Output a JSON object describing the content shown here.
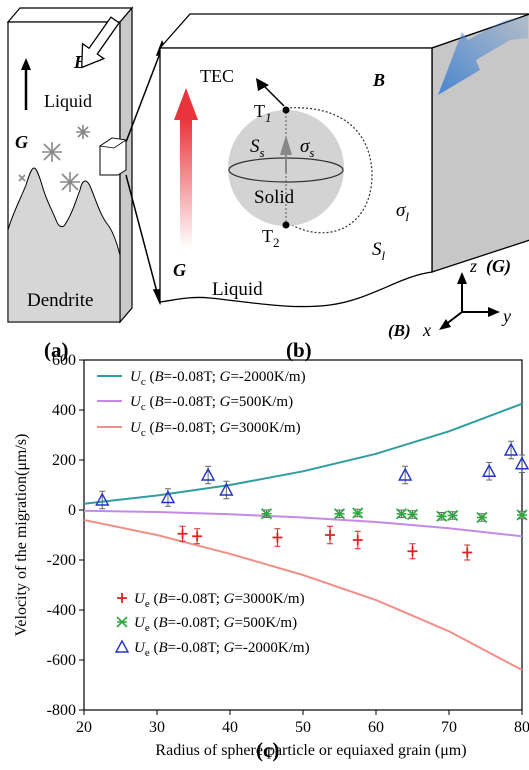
{
  "panel_a": {
    "label": "(a)",
    "b_label": "B",
    "liquid": "Liquid",
    "g_label": "G",
    "dendrite": "Dendrite"
  },
  "panel_b": {
    "label": "(b)",
    "tec": "TEC",
    "b_label": "B",
    "t1_main": "T",
    "t1_sub": "1",
    "t2_main": "T",
    "t2_sub": "2",
    "ss_main": "S",
    "ss_sub": "s",
    "sigma_s_main": "σ",
    "sigma_s_sub": "s",
    "solid": "Solid",
    "sigma_l_main": "σ",
    "sigma_l_sub": "l",
    "sl_main": "S",
    "sl_sub": "l",
    "g_label": "G",
    "liquid": "Liquid",
    "axis_z": "z",
    "axis_z_tag": "(G)",
    "axis_y": "y",
    "axis_x_tag": "(B)",
    "axis_x": "x",
    "colors": {
      "arrow_b": "#4a86d0",
      "arrow_g": "#e8343a",
      "sphere": "#d3d3d3"
    }
  },
  "panel_c": {
    "label": "(c)"
  },
  "chart_data": {
    "type": "scatter",
    "xlabel": "Radius of  sphere particle or equiaxed grain (μm)",
    "ylabel": "Velocity of the migration(μm/s)",
    "xlim": [
      20,
      80
    ],
    "ylim": [
      -800,
      600
    ],
    "xticks": [
      20,
      30,
      40,
      50,
      60,
      70,
      80
    ],
    "yticks": [
      -800,
      -600,
      -400,
      -200,
      0,
      200,
      400,
      600
    ],
    "series": [
      {
        "kind": "line",
        "legend": "Uc (B=-0.08T; G=-2000K/m)",
        "color": "#2e9ea0",
        "x": [
          20,
          30,
          40,
          50,
          60,
          70,
          80
        ],
        "y": [
          25,
          58,
          100,
          155,
          225,
          315,
          425
        ]
      },
      {
        "kind": "line",
        "legend": "Uc (B=-0.08T; G=500K/m)",
        "color": "#c58ae8",
        "x": [
          20,
          30,
          40,
          50,
          60,
          70,
          80
        ],
        "y": [
          -3,
          -8,
          -17,
          -30,
          -48,
          -73,
          -105
        ]
      },
      {
        "kind": "line",
        "legend": "Uc (B=-0.08T; G=3000K/m)",
        "color": "#f08f86",
        "x": [
          20,
          30,
          40,
          50,
          60,
          70,
          80
        ],
        "y": [
          -40,
          -100,
          -175,
          -260,
          -360,
          -485,
          -640
        ]
      },
      {
        "kind": "points",
        "marker": "plus",
        "legend": "Ue (B=-0.08T; G=3000K/m)",
        "color": "#dd2222",
        "x": [
          33.5,
          35.5,
          46.5,
          53.7,
          57.5,
          65,
          72.5
        ],
        "y": [
          -95,
          -105,
          -110,
          -100,
          -120,
          -165,
          -170
        ],
        "err": [
          30,
          30,
          35,
          35,
          35,
          30,
          30
        ]
      },
      {
        "kind": "points",
        "marker": "star",
        "legend": "Ue (B=-0.08T; G=500K/m)",
        "color": "#2aaa3c",
        "x": [
          45,
          55,
          57.5,
          63.5,
          65,
          69,
          70.5,
          74.5,
          80
        ],
        "y": [
          -15,
          -15,
          -12,
          -15,
          -18,
          -25,
          -22,
          -30,
          -20
        ],
        "err": [
          15,
          15,
          15,
          15,
          15,
          15,
          15,
          15,
          15
        ]
      },
      {
        "kind": "points",
        "marker": "triangle",
        "legend": "Ue (B=-0.08T; G=-2000K/m)",
        "color": "#2233cc",
        "x": [
          22.5,
          31.5,
          37,
          39.5,
          64,
          75.5,
          78.5,
          80
        ],
        "y": [
          40,
          50,
          140,
          80,
          140,
          155,
          240,
          185
        ],
        "err": [
          35,
          35,
          35,
          35,
          35,
          35,
          35,
          35
        ]
      }
    ]
  }
}
